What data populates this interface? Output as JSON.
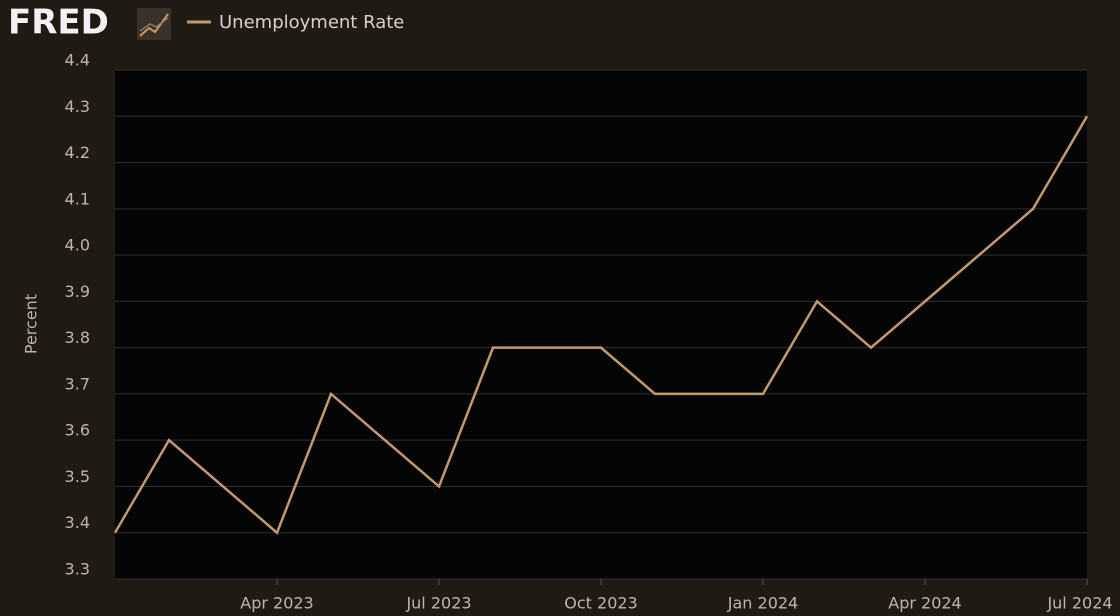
{
  "logo": "FRED",
  "chart_data": {
    "type": "line",
    "y_label": "Percent",
    "x": [
      "2023-01",
      "2023-02",
      "2023-03",
      "2023-04",
      "2023-05",
      "2023-06",
      "2023-07",
      "2023-08",
      "2023-09",
      "2023-10",
      "2023-11",
      "2023-12",
      "2024-01",
      "2024-02",
      "2024-03",
      "2024-04",
      "2024-05",
      "2024-06",
      "2024-07"
    ],
    "series": [
      {
        "name": "Unemployment Rate",
        "color": "#c49a6c",
        "values": [
          3.4,
          3.6,
          3.5,
          3.4,
          3.7,
          3.6,
          3.5,
          3.8,
          3.8,
          3.8,
          3.7,
          3.7,
          3.7,
          3.9,
          3.8,
          3.9,
          4.0,
          4.1,
          4.3
        ]
      }
    ],
    "xlim": [
      "2023-01",
      "2024-07"
    ],
    "xticks": [
      {
        "value": "2023-04",
        "label": "Apr 2023"
      },
      {
        "value": "2023-07",
        "label": "Jul 2023"
      },
      {
        "value": "2023-10",
        "label": "Oct 2023"
      },
      {
        "value": "2024-01",
        "label": "Jan 2024"
      },
      {
        "value": "2024-04",
        "label": "Apr 2024"
      },
      {
        "value": "2024-07",
        "label": "Jul 2024"
      }
    ],
    "ylim": [
      3.3,
      4.4
    ],
    "yticks": [
      3.3,
      3.4,
      3.5,
      3.6,
      3.7,
      3.8,
      3.9,
      {
        "value": 4,
        "label": "4.0"
      },
      4.1,
      4.2,
      4.3,
      4.4
    ],
    "grid": true
  }
}
